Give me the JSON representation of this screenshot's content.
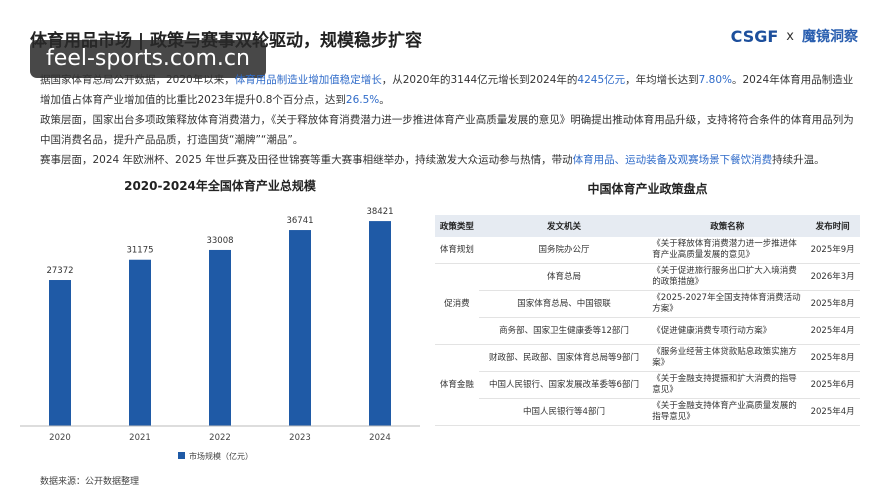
{
  "watermark": "feel-sports.com.cn",
  "header": {
    "title": "体育用品市场 | 政策与赛事双轮驱动，规模稳步扩容",
    "logo_left": "CSGF",
    "logo_sep": "x",
    "logo_right": "魔镜洞察"
  },
  "paragraphs": [
    [
      "据国家体育总局公开数据，2020年以来，",
      "体育用品制造业增加值稳定增长",
      "，从2020年的3144亿元增长到2024年的",
      "4245亿元",
      "，年均增长达到",
      "7.80%",
      "。2024年体育用品制造业增加值占体育产业增加值的比重比2023年提升0.8个百分点，达到",
      "26.5%",
      "。"
    ],
    [
      "政策层面，国家出台多项政策释放体育消费潜力，《关于释放体育消费潜力进一步推进体育产业高质量发展的意见》明确提出推动体育用品升级，支持将符合条件的体育用品列为中国消费名品，提升产品品质，打造国货“潮牌”“潮品”。"
    ],
    [
      "赛事层面，2024 年欧洲杯、2025 年世乒赛及田径世锦赛等重大赛事相继举办，持续激发大众运动参与热情，带动",
      "体育用品、运动装备及观赛场景下餐饮消费",
      "持续升温。"
    ]
  ],
  "chart_data": {
    "type": "bar",
    "title": "2020-2024年全国体育产业总规模",
    "categories": [
      "2020",
      "2021",
      "2022",
      "2023",
      "2024"
    ],
    "series": [
      {
        "name": "市场规模（亿元）",
        "color": "#1f5aa6",
        "values": [
          27372,
          31175,
          33008,
          36741,
          38421
        ]
      }
    ],
    "ylim": [
      0,
      42000
    ]
  },
  "table": {
    "title": "中国体育产业政策盘点",
    "header": [
      "政策类型",
      "发文机关",
      "政策名称",
      "发布时间"
    ],
    "groups": [
      {
        "type": "体育规划",
        "rows": [
          [
            "国务院办公厅",
            "《关于释放体育消费潜力进一步推进体育产业高质量发展的意见》",
            "2025年9月"
          ]
        ]
      },
      {
        "type": "促消费",
        "rows": [
          [
            "体育总局",
            "《关于促进旅行服务出口扩大入境消费的政策措施》",
            "2026年3月"
          ],
          [
            "国家体育总局、中国银联",
            "《2025-2027年全国支持体育消费活动方案》",
            "2025年8月"
          ],
          [
            "商务部、国家卫生健康委等12部门",
            "《促进健康消费专项行动方案》",
            "2025年4月"
          ]
        ]
      },
      {
        "type": "体育金融",
        "rows": [
          [
            "财政部、民政部、国家体育总局等9部门",
            "《服务业经营主体贷款贴息政策实施方案》",
            "2025年8月"
          ],
          [
            "中国人民银行、国家发展改革委等6部门",
            "《关于金融支持提振和扩大消费的指导意见》",
            "2025年6月"
          ],
          [
            "中国人民银行等4部门",
            "《关于金融支持体育产业高质量发展的指导意见》",
            "2025年4月"
          ]
        ]
      }
    ]
  },
  "footer": "数据来源：公开数据整理"
}
